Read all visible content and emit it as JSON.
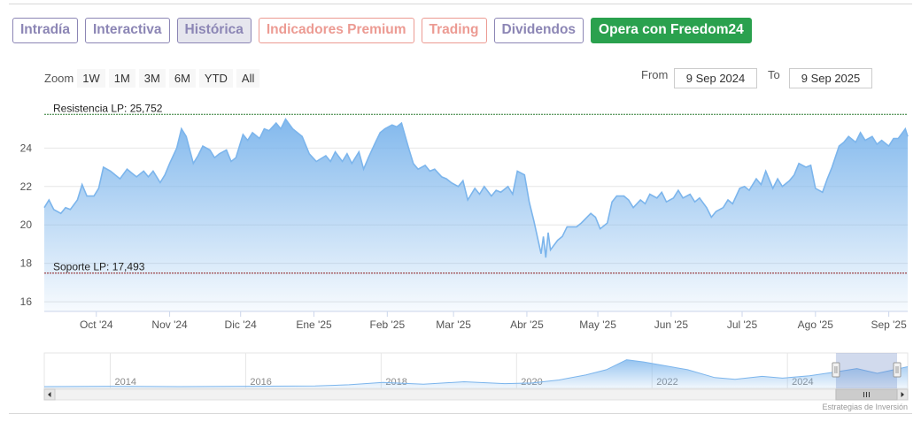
{
  "tabs": [
    {
      "label": "Intradía",
      "style": "purple"
    },
    {
      "label": "Interactiva",
      "style": "purple"
    },
    {
      "label": "Histórica",
      "style": "active"
    },
    {
      "label": "Indicadores Premium",
      "style": "salmon"
    },
    {
      "label": "Trading",
      "style": "salmon"
    },
    {
      "label": "Dividendos",
      "style": "purple"
    },
    {
      "label": "Opera con Freedom24",
      "style": "green"
    }
  ],
  "zoom": {
    "label": "Zoom",
    "buttons": [
      "1W",
      "1M",
      "3M",
      "6M",
      "YTD",
      "All"
    ]
  },
  "range": {
    "from_label": "From",
    "from_value": "9 Sep 2024",
    "to_label": "To",
    "to_value": "9 Sep 2025"
  },
  "credits": "Estrategias de Inversión",
  "colors": {
    "line": "#7cb5ec",
    "fill_top": "#7cb5ec",
    "resistance": "#2f7d32",
    "support": "#8b1c1c"
  },
  "chart_data": {
    "type": "area",
    "grid": true,
    "ylim": [
      15.5,
      26.5
    ],
    "y_ticks": [
      "16",
      "18",
      "20",
      "22",
      "24"
    ],
    "y_tick_values": [
      16,
      18,
      20,
      22,
      24
    ],
    "x_range": [
      "2024-09-09",
      "2025-09-09"
    ],
    "x_ticks": [
      {
        "label": "Oct '24",
        "date": "2024-10-01"
      },
      {
        "label": "Nov '24",
        "date": "2024-11-01"
      },
      {
        "label": "Dic '24",
        "date": "2024-12-01"
      },
      {
        "label": "Ene '25",
        "date": "2025-01-01"
      },
      {
        "label": "Feb '25",
        "date": "2025-02-01"
      },
      {
        "label": "Mar '25",
        "date": "2025-03-01"
      },
      {
        "label": "Abr '25",
        "date": "2025-04-01"
      },
      {
        "label": "May '25",
        "date": "2025-05-01"
      },
      {
        "label": "Jun '25",
        "date": "2025-06-01"
      },
      {
        "label": "Jul '25",
        "date": "2025-07-01"
      },
      {
        "label": "Ago '25",
        "date": "2025-08-01"
      },
      {
        "label": "Sep '25",
        "date": "2025-09-01"
      }
    ],
    "reference_lines": [
      {
        "label": "Resistencia LP: 25,752",
        "value": 25.752
      },
      {
        "label": "Soporte LP: 17,493",
        "value": 17.493
      }
    ],
    "series": [
      {
        "points": [
          [
            "2024-09-09",
            20.9
          ],
          [
            "2024-09-11",
            21.3
          ],
          [
            "2024-09-13",
            20.8
          ],
          [
            "2024-09-16",
            20.6
          ],
          [
            "2024-09-18",
            20.9
          ],
          [
            "2024-09-20",
            20.8
          ],
          [
            "2024-09-23",
            21.3
          ],
          [
            "2024-09-25",
            22.1
          ],
          [
            "2024-09-27",
            21.5
          ],
          [
            "2024-09-30",
            21.5
          ],
          [
            "2024-10-02",
            21.9
          ],
          [
            "2024-10-04",
            23.0
          ],
          [
            "2024-10-07",
            22.8
          ],
          [
            "2024-10-09",
            22.6
          ],
          [
            "2024-10-11",
            22.4
          ],
          [
            "2024-10-14",
            22.9
          ],
          [
            "2024-10-16",
            22.7
          ],
          [
            "2024-10-18",
            22.5
          ],
          [
            "2024-10-21",
            22.8
          ],
          [
            "2024-10-23",
            22.5
          ],
          [
            "2024-10-25",
            22.8
          ],
          [
            "2024-10-28",
            22.2
          ],
          [
            "2024-10-30",
            22.6
          ],
          [
            "2024-11-01",
            23.2
          ],
          [
            "2024-11-04",
            24.0
          ],
          [
            "2024-11-06",
            25.0
          ],
          [
            "2024-11-08",
            24.6
          ],
          [
            "2024-11-11",
            23.2
          ],
          [
            "2024-11-13",
            23.6
          ],
          [
            "2024-11-15",
            24.1
          ],
          [
            "2024-11-18",
            23.9
          ],
          [
            "2024-11-20",
            23.5
          ],
          [
            "2024-11-22",
            23.7
          ],
          [
            "2024-11-25",
            23.9
          ],
          [
            "2024-11-27",
            23.3
          ],
          [
            "2024-11-29",
            23.5
          ],
          [
            "2024-12-02",
            24.7
          ],
          [
            "2024-12-04",
            24.4
          ],
          [
            "2024-12-06",
            24.8
          ],
          [
            "2024-12-09",
            24.5
          ],
          [
            "2024-12-11",
            25.0
          ],
          [
            "2024-12-13",
            24.9
          ],
          [
            "2024-12-16",
            25.3
          ],
          [
            "2024-12-18",
            25.0
          ],
          [
            "2024-12-20",
            25.5
          ],
          [
            "2024-12-23",
            25.0
          ],
          [
            "2024-12-27",
            24.6
          ],
          [
            "2024-12-30",
            23.7
          ],
          [
            "2025-01-02",
            23.3
          ],
          [
            "2025-01-06",
            23.6
          ],
          [
            "2025-01-08",
            23.3
          ],
          [
            "2025-01-10",
            23.8
          ],
          [
            "2025-01-13",
            23.3
          ],
          [
            "2025-01-15",
            23.7
          ],
          [
            "2025-01-17",
            23.2
          ],
          [
            "2025-01-20",
            23.8
          ],
          [
            "2025-01-22",
            22.9
          ],
          [
            "2025-01-24",
            23.5
          ],
          [
            "2025-01-27",
            24.3
          ],
          [
            "2025-01-29",
            24.8
          ],
          [
            "2025-01-31",
            25.0
          ],
          [
            "2025-02-03",
            25.2
          ],
          [
            "2025-02-05",
            25.1
          ],
          [
            "2025-02-07",
            25.3
          ],
          [
            "2025-02-10",
            24.0
          ],
          [
            "2025-02-12",
            23.2
          ],
          [
            "2025-02-14",
            22.9
          ],
          [
            "2025-02-17",
            23.1
          ],
          [
            "2025-02-19",
            22.8
          ],
          [
            "2025-02-21",
            22.9
          ],
          [
            "2025-02-24",
            22.5
          ],
          [
            "2025-02-26",
            22.4
          ],
          [
            "2025-02-28",
            22.2
          ],
          [
            "2025-03-03",
            22.0
          ],
          [
            "2025-03-05",
            22.3
          ],
          [
            "2025-03-07",
            21.3
          ],
          [
            "2025-03-10",
            21.9
          ],
          [
            "2025-03-12",
            21.6
          ],
          [
            "2025-03-14",
            22.0
          ],
          [
            "2025-03-17",
            21.5
          ],
          [
            "2025-03-19",
            21.8
          ],
          [
            "2025-03-21",
            21.7
          ],
          [
            "2025-03-24",
            22.0
          ],
          [
            "2025-03-26",
            21.6
          ],
          [
            "2025-03-28",
            22.8
          ],
          [
            "2025-03-31",
            22.6
          ],
          [
            "2025-04-02",
            21.2
          ],
          [
            "2025-04-04",
            20.2
          ],
          [
            "2025-04-07",
            18.5
          ],
          [
            "2025-04-08",
            19.4
          ],
          [
            "2025-04-09",
            18.3
          ],
          [
            "2025-04-10",
            19.6
          ],
          [
            "2025-04-11",
            18.7
          ],
          [
            "2025-04-14",
            19.2
          ],
          [
            "2025-04-16",
            19.4
          ],
          [
            "2025-04-18",
            19.9
          ],
          [
            "2025-04-22",
            19.9
          ],
          [
            "2025-04-24",
            20.1
          ],
          [
            "2025-04-28",
            20.6
          ],
          [
            "2025-04-30",
            20.4
          ],
          [
            "2025-05-02",
            19.8
          ],
          [
            "2025-05-05",
            20.1
          ],
          [
            "2025-05-07",
            21.2
          ],
          [
            "2025-05-09",
            21.5
          ],
          [
            "2025-05-12",
            21.5
          ],
          [
            "2025-05-14",
            21.3
          ],
          [
            "2025-05-16",
            20.9
          ],
          [
            "2025-05-19",
            21.3
          ],
          [
            "2025-05-21",
            21.1
          ],
          [
            "2025-05-23",
            21.6
          ],
          [
            "2025-05-26",
            21.4
          ],
          [
            "2025-05-28",
            21.7
          ],
          [
            "2025-05-30",
            21.2
          ],
          [
            "2025-06-02",
            21.4
          ],
          [
            "2025-06-04",
            21.8
          ],
          [
            "2025-06-06",
            21.4
          ],
          [
            "2025-06-09",
            21.6
          ],
          [
            "2025-06-11",
            21.2
          ],
          [
            "2025-06-13",
            21.4
          ],
          [
            "2025-06-16",
            20.9
          ],
          [
            "2025-06-18",
            20.4
          ],
          [
            "2025-06-20",
            20.7
          ],
          [
            "2025-06-23",
            20.9
          ],
          [
            "2025-06-25",
            21.3
          ],
          [
            "2025-06-27",
            21.1
          ],
          [
            "2025-06-30",
            21.9
          ],
          [
            "2025-07-02",
            22.0
          ],
          [
            "2025-07-04",
            21.8
          ],
          [
            "2025-07-07",
            22.4
          ],
          [
            "2025-07-09",
            22.1
          ],
          [
            "2025-07-11",
            22.8
          ],
          [
            "2025-07-14",
            21.9
          ],
          [
            "2025-07-16",
            22.4
          ],
          [
            "2025-07-18",
            22.0
          ],
          [
            "2025-07-21",
            22.3
          ],
          [
            "2025-07-23",
            22.6
          ],
          [
            "2025-07-25",
            23.2
          ],
          [
            "2025-07-28",
            23.0
          ],
          [
            "2025-07-30",
            23.1
          ],
          [
            "2025-08-01",
            21.9
          ],
          [
            "2025-08-04",
            21.7
          ],
          [
            "2025-08-06",
            22.4
          ],
          [
            "2025-08-08",
            23.0
          ],
          [
            "2025-08-11",
            24.1
          ],
          [
            "2025-08-13",
            24.3
          ],
          [
            "2025-08-15",
            24.6
          ],
          [
            "2025-08-18",
            24.3
          ],
          [
            "2025-08-20",
            24.8
          ],
          [
            "2025-08-22",
            24.4
          ],
          [
            "2025-08-25",
            24.6
          ],
          [
            "2025-08-27",
            24.2
          ],
          [
            "2025-08-29",
            24.4
          ],
          [
            "2025-09-01",
            24.1
          ],
          [
            "2025-09-03",
            24.5
          ],
          [
            "2025-09-05",
            24.5
          ],
          [
            "2025-09-08",
            25.0
          ],
          [
            "2025-09-09",
            24.6
          ]
        ]
      }
    ]
  },
  "navigator": {
    "labels": [
      "2014",
      "2016",
      "2018",
      "2020",
      "2022",
      "2024"
    ],
    "years": [
      2014,
      2016,
      2018,
      2020,
      2022,
      2024
    ],
    "range_years": [
      2013,
      2025.75
    ],
    "selected_years": [
      2024.69,
      2025.69
    ],
    "series": [
      [
        2013.0,
        0.06
      ],
      [
        2014.0,
        0.07
      ],
      [
        2015.0,
        0.06
      ],
      [
        2016.0,
        0.07
      ],
      [
        2017.0,
        0.08
      ],
      [
        2017.5,
        0.12
      ],
      [
        2018.0,
        0.2
      ],
      [
        2018.6,
        0.14
      ],
      [
        2019.2,
        0.22
      ],
      [
        2019.8,
        0.16
      ],
      [
        2020.2,
        0.18
      ],
      [
        2020.6,
        0.28
      ],
      [
        2021.0,
        0.45
      ],
      [
        2021.3,
        0.62
      ],
      [
        2021.6,
        0.95
      ],
      [
        2021.85,
        0.88
      ],
      [
        2022.1,
        0.78
      ],
      [
        2022.5,
        0.62
      ],
      [
        2022.9,
        0.36
      ],
      [
        2023.2,
        0.3
      ],
      [
        2023.6,
        0.4
      ],
      [
        2023.9,
        0.34
      ],
      [
        2024.3,
        0.42
      ],
      [
        2024.7,
        0.55
      ],
      [
        2025.0,
        0.66
      ],
      [
        2025.3,
        0.5
      ],
      [
        2025.75,
        0.72
      ]
    ]
  }
}
